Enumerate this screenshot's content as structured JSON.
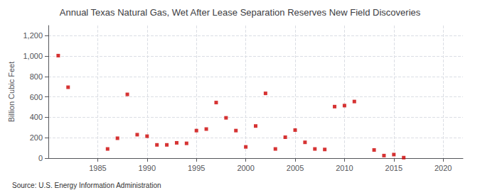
{
  "chart_data": {
    "type": "scatter",
    "title": "Annual Texas Natural Gas, Wet After Lease Separation Reserves New Field Discoveries",
    "ylabel": "Billion Cubic Feet",
    "annotations": [
      "Source: U.S. Energy Information Administration"
    ],
    "x": [
      1981,
      1982,
      1986,
      1987,
      1988,
      1989,
      1990,
      1991,
      1992,
      1993,
      1994,
      1995,
      1996,
      1997,
      1998,
      1999,
      2000,
      2001,
      2002,
      2003,
      2004,
      2005,
      2006,
      2007,
      2008,
      2009,
      2010,
      2011,
      2013,
      2014,
      2015,
      2016
    ],
    "values": [
      1005,
      695,
      90,
      195,
      625,
      230,
      215,
      130,
      130,
      150,
      145,
      270,
      285,
      545,
      395,
      270,
      110,
      315,
      635,
      90,
      205,
      275,
      155,
      90,
      85,
      505,
      515,
      555,
      80,
      25,
      35,
      5
    ],
    "color": "#cc0000",
    "marker": "square",
    "xlim": [
      1980,
      2022
    ],
    "xticks": [
      1985,
      1990,
      1995,
      2000,
      2005,
      2010,
      2015,
      2020
    ],
    "ylim": [
      0,
      1300
    ],
    "yticks": [
      0,
      200,
      400,
      600,
      800,
      {
        "value": 1000,
        "label": "1,000"
      },
      {
        "value": 1200,
        "label": "1,200"
      }
    ],
    "grid": true
  }
}
